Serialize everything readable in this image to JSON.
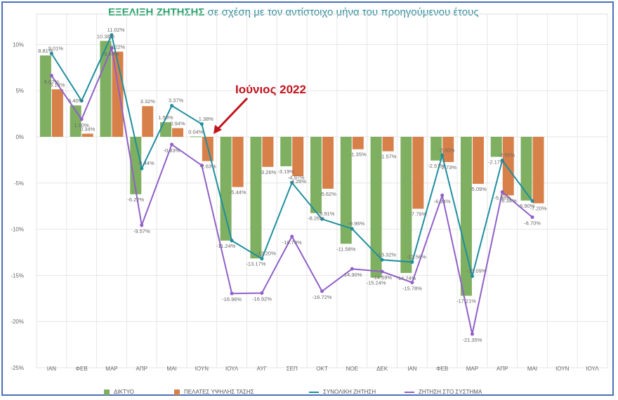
{
  "title": {
    "highlight": "ΕΞΕΛΙΞΗ ΖΗΤΗΣΗΣ",
    "rest": " σε σχέση με τον αντίστοιχο μήνα του προηγούμενου έτους"
  },
  "annotation": "Ιούνιος 2022",
  "colors": {
    "diktyo": "#7fb062",
    "ypsili": "#d8804a",
    "synoliki": "#1f8e9e",
    "systima": "#9060c8",
    "annotation": "#c0141e"
  },
  "chart_data": {
    "type": "bar",
    "categories": [
      "ΙΑΝ",
      "ΦΕΒ",
      "ΜΑΡ",
      "ΑΠΡ",
      "ΜΑΙ",
      "ΙΟΥΝ",
      "ΙΟΥΛ",
      "ΑΥΓ",
      "ΣΕΠ",
      "ΟΚΤ",
      "ΝΟΕ",
      "ΔΕΚ",
      "ΙΑΝ",
      "ΦΕΒ",
      "ΜΑΡ",
      "ΑΠΡ",
      "ΜΑΙ",
      "ΙΟΥΝ",
      "ΙΟΥΛ"
    ],
    "ylim": [
      -25,
      12
    ],
    "yticks": [
      "10%",
      "5%",
      "0%",
      "-5%",
      "-10%",
      "-15%",
      "-20%",
      "-25%"
    ],
    "grid": true,
    "legend_position": "bottom",
    "series": [
      {
        "name": "ΔΙΚΤΥΟ",
        "kind": "bar",
        "values": [
          8.81,
          3.4,
          10.38,
          -6.22,
          1.58,
          0.04,
          -11.24,
          -13.17,
          -3.19,
          -8.26,
          -11.58,
          -15.24,
          -14.74,
          -2.57,
          -17.21,
          -2.17,
          -6.9,
          null,
          null
        ],
        "labels": [
          "8.81%",
          "3.40%",
          "10.38%",
          "-6.22%",
          "1.58%",
          "0.04%",
          "-11.24%",
          "-13.17%",
          "-3.19%",
          "-8.26%",
          "-11.58%",
          "-15.24%",
          "-14.74%",
          "-2.57%",
          "-17.21%",
          "-2.17%",
          "-6.90%",
          "",
          ""
        ]
      },
      {
        "name": "ΠΕΛΑΤΕΣ ΥΨΗΛΗΣ ΤΑΣΗΣ",
        "kind": "bar",
        "values": [
          5.14,
          0.34,
          9.22,
          3.32,
          0.94,
          -2.63,
          -5.44,
          -3.26,
          -4.26,
          -5.62,
          -1.35,
          -1.57,
          -7.79,
          -2.73,
          -5.09,
          -6.34,
          -7.2,
          null,
          null
        ],
        "labels": [
          "5.14%",
          "0.34%",
          "9.22%",
          "3.32%",
          "0.94%",
          "-2.63%",
          "-5.44%",
          "-3.26%",
          "-4.26%",
          "-5.62%",
          "-1.35%",
          "-1.57%",
          "-7.79%",
          "-2.73%",
          "-5.09%",
          "-6.34%",
          "-7.20%",
          "",
          ""
        ]
      },
      {
        "name": "ΣΥΝΟΛΙΚΗ ΖΗΤΗΣΗ",
        "kind": "line",
        "values": [
          9.01,
          3.9,
          11.02,
          -3.44,
          3.37,
          1.38,
          -11.24,
          -13.2,
          -4.97,
          -8.91,
          -9.96,
          -13.32,
          -13.56,
          -2.0,
          -15.09,
          -2.55,
          -6.95,
          null,
          null
        ],
        "labels": [
          "9.01%",
          "",
          "11.02%",
          "-3.44%",
          "3.37%",
          "1.38%",
          "",
          "-13.20%",
          "-4.97%",
          "-8.91%",
          "-9.96%",
          "-13.32%",
          "-13.56%",
          "-2.00%",
          "-15.09%",
          "-2.55%",
          "",
          "",
          ""
        ]
      },
      {
        "name": "ΖΗΤΗΣΗ ΣΤΟ ΣΥΣΤΗΜΑ",
        "kind": "line",
        "values": [
          6.62,
          1.9,
          9.6,
          -9.57,
          -0.83,
          -3.1,
          -16.96,
          -16.92,
          -10.79,
          -16.72,
          -14.3,
          -14.59,
          -15.78,
          -6.34,
          -21.35,
          -5.98,
          -8.7,
          null,
          null
        ],
        "labels": [
          "6.62%",
          "1.90%",
          "9.60%",
          "-9.57%",
          "-0.83%",
          "",
          "-16.96%",
          "-16.92%",
          "-10.79%",
          "-16.72%",
          "-14.30%",
          "-14.59%",
          "-15.78%",
          "-6.34%",
          "-21.35%",
          "-5.98%",
          "-8.70%",
          "",
          ""
        ]
      }
    ]
  }
}
